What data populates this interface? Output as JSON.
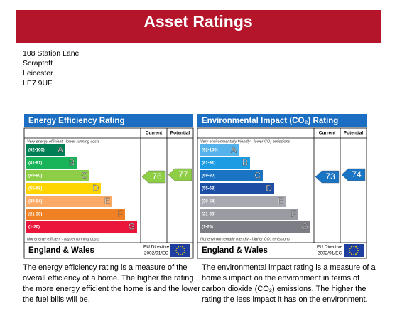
{
  "header": {
    "title": "Asset Ratings"
  },
  "address": [
    "108 Station Lane",
    "Scraptoft",
    "Leicester",
    "LE7 9UF"
  ],
  "panels": [
    {
      "title": "Energy Efficiency Rating",
      "columns": [
        "Current",
        "Potential"
      ],
      "top_note": "Very energy efficient - lower running costs",
      "bottom_note": "Not energy efficient - higher running costs",
      "bands": [
        {
          "range": "(92-100)",
          "letter": "A",
          "color": "#008054"
        },
        {
          "range": "(81-91)",
          "letter": "B",
          "color": "#19b459"
        },
        {
          "range": "(69-80)",
          "letter": "C",
          "color": "#8dce46"
        },
        {
          "range": "(55-68)",
          "letter": "D",
          "color": "#ffd500"
        },
        {
          "range": "(39-54)",
          "letter": "E",
          "color": "#fcaa65"
        },
        {
          "range": "(21-38)",
          "letter": "F",
          "color": "#ef8023"
        },
        {
          "range": "(1-20)",
          "letter": "G",
          "color": "#e9153b"
        }
      ],
      "current": 76,
      "potential": 77,
      "region": "England & Wales",
      "directive": [
        "EU Directive",
        "2002/91/EC"
      ]
    },
    {
      "title": "Environmental Impact (CO₂) Rating",
      "columns": [
        "Current",
        "Potential"
      ],
      "top_note": "Very environmentally friendly - lower CO₂ emissions",
      "bottom_note": "Not environmentally friendly - higher CO₂ emissions",
      "bands": [
        {
          "range": "(92-100)",
          "letter": "A",
          "color": "#55b2ea"
        },
        {
          "range": "(81-91)",
          "letter": "B",
          "color": "#1b9ce3"
        },
        {
          "range": "(69-80)",
          "letter": "C",
          "color": "#1a74c4"
        },
        {
          "range": "(55-68)",
          "letter": "D",
          "color": "#1d4ea6"
        },
        {
          "range": "(39-54)",
          "letter": "E",
          "color": "#a8a8b0"
        },
        {
          "range": "(21-38)",
          "letter": "F",
          "color": "#9a9aa2"
        },
        {
          "range": "(1-20)",
          "letter": "G",
          "color": "#7d7d86"
        }
      ],
      "current": 73,
      "potential": 74,
      "region": "England & Wales",
      "directive": [
        "EU Directive",
        "2002/91/EC"
      ]
    }
  ],
  "descriptions": [
    "The energy efficiency rating is a measure of the overall efficiency of a home. The higher the rating the more energy efficient the home is and the lower the fuel bills will be.",
    "The environmental impact rating is a measure of a home's impact on the environment in terms of carbon dioxide (CO₂) emissions. The higher the rating the less impact it has on the environment."
  ]
}
